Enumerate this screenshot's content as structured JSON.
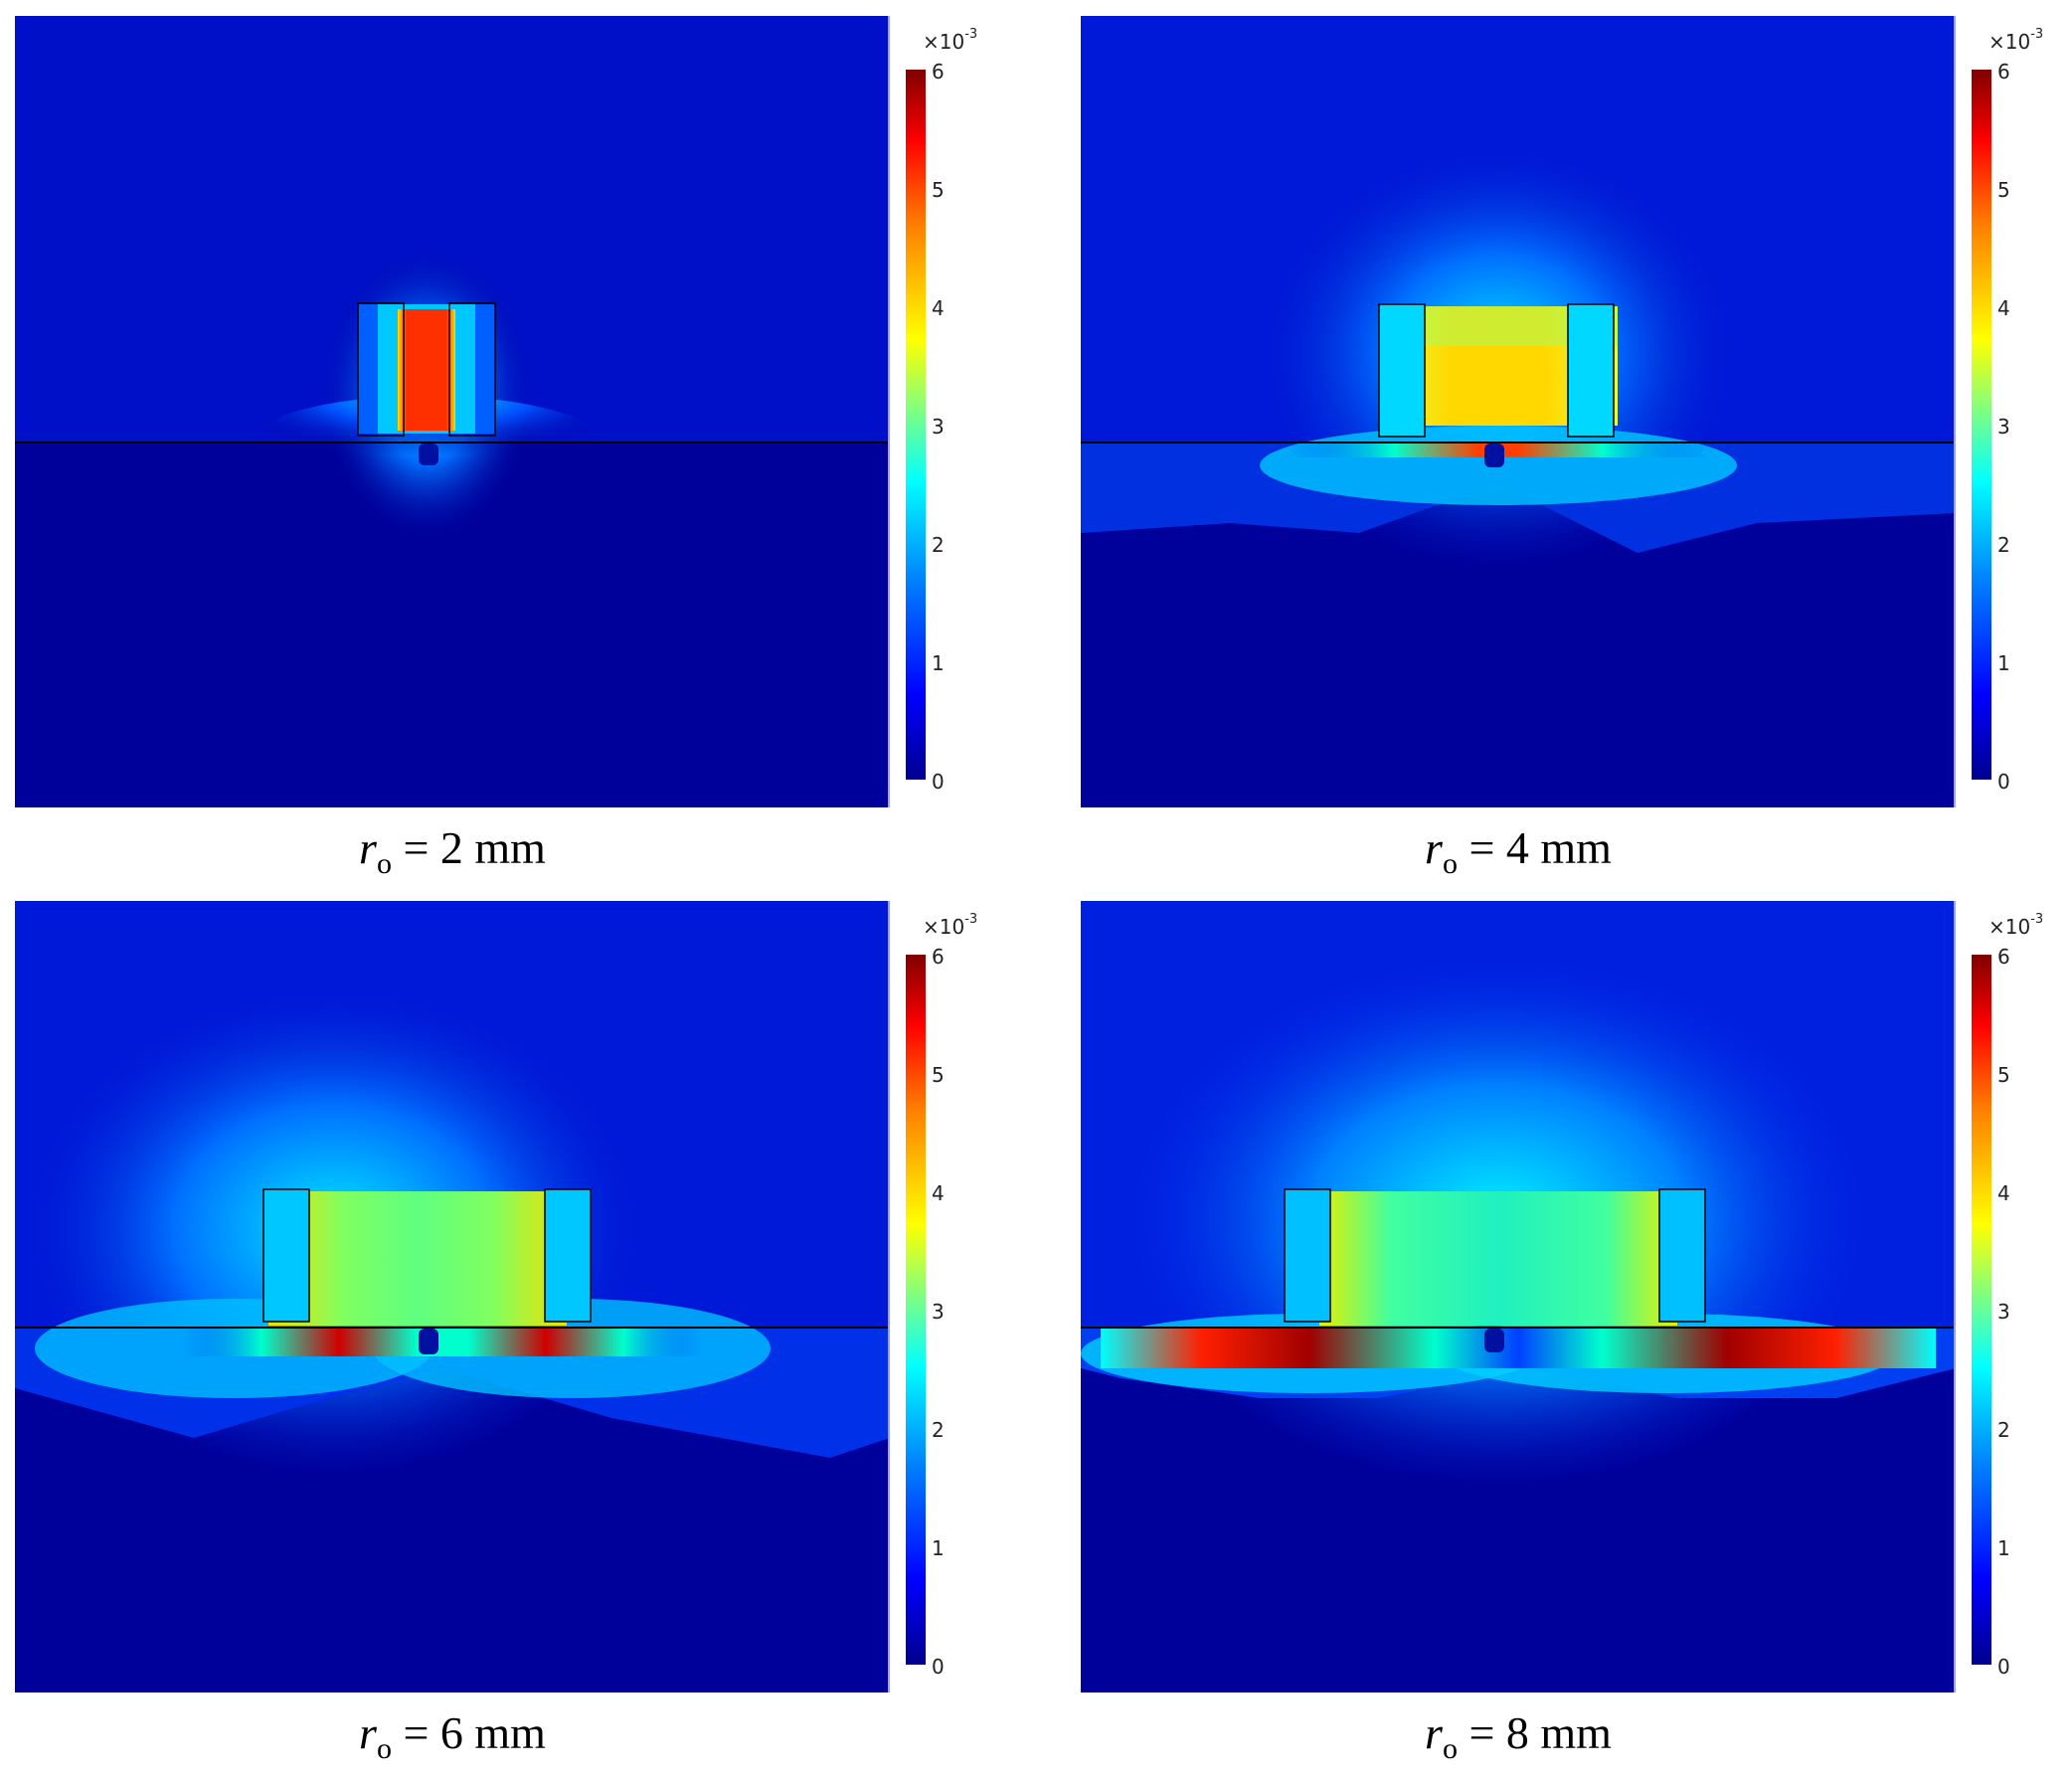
{
  "colorbar": {
    "exponent_base": "×10",
    "exponent_power": "-3",
    "ticks": [
      "6",
      "5",
      "4",
      "3",
      "2",
      "1",
      "0"
    ],
    "colormap": "jet"
  },
  "panels": [
    {
      "var": "r",
      "sub": "o",
      "equals": " = 2 mm",
      "radius_mm": 2
    },
    {
      "var": "r",
      "sub": "o",
      "equals": " = 4 mm",
      "radius_mm": 4
    },
    {
      "var": "r",
      "sub": "o",
      "equals": " = 6 mm",
      "radius_mm": 6
    },
    {
      "var": "r",
      "sub": "o",
      "equals": " = 8 mm",
      "radius_mm": 8
    }
  ]
}
